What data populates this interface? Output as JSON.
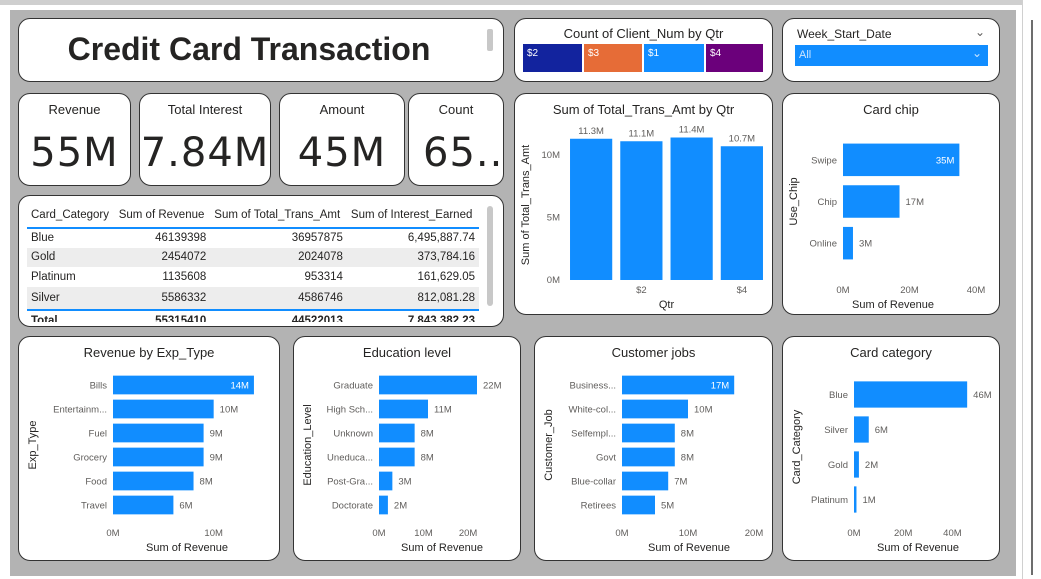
{
  "title": "Credit Card Transaction",
  "kpis": [
    {
      "label": "Revenue",
      "value": "55M"
    },
    {
      "label": "Total Interest",
      "value": "7.84M"
    },
    {
      "label": "Amount",
      "value": "45M"
    },
    {
      "label": "Count",
      "value": "65..."
    }
  ],
  "slicer": {
    "title": "Week_Start_Date",
    "selected": "All"
  },
  "qtr_count": {
    "title": "Count of Client_Num by Qtr",
    "segments": [
      {
        "label": "$2",
        "color": "#12239e"
      },
      {
        "label": "$3",
        "color": "#e66c37"
      },
      {
        "label": "$1",
        "color": "#118dff"
      },
      {
        "label": "$4",
        "color": "#6b007b"
      }
    ]
  },
  "table": {
    "columns": [
      "Card_Category",
      "Sum of Revenue",
      "Sum of Total_Trans_Amt",
      "Sum of Interest_Earned"
    ],
    "rows": [
      [
        "Blue",
        "46139398",
        "36957875",
        "6,495,887.74"
      ],
      [
        "Gold",
        "2454072",
        "2024078",
        "373,784.16"
      ],
      [
        "Platinum",
        "1135608",
        "953314",
        "161,629.05"
      ],
      [
        "Silver",
        "5586332",
        "4586746",
        "812,081.28"
      ]
    ],
    "total": [
      "Total",
      "55315410",
      "44522013",
      "7,843,382.23"
    ]
  },
  "chart_data": [
    {
      "id": "trans_by_qtr",
      "type": "bar",
      "title": "Sum of Total_Trans_Amt by Qtr",
      "xlabel": "Qtr",
      "ylabel": "Sum of Total_Trans_Amt",
      "categories": [
        "$1",
        "$2",
        "$3",
        "$4"
      ],
      "values": [
        11.3,
        11.1,
        11.4,
        10.7
      ],
      "data_labels": [
        "11.3M",
        "11.1M",
        "11.4M",
        "10.7M"
      ],
      "x_ticks": [
        "$2",
        "$4"
      ],
      "y_ticks": [
        "0M",
        "5M",
        "10M"
      ],
      "ylim": [
        0,
        12
      ]
    },
    {
      "id": "card_chip",
      "type": "bar",
      "orientation": "horizontal",
      "title": "Card chip",
      "xlabel": "Sum of Revenue",
      "ylabel": "Use_Chip",
      "categories": [
        "Swipe",
        "Chip",
        "Online"
      ],
      "values": [
        35,
        17,
        3
      ],
      "data_labels": [
        "35M",
        "17M",
        "3M"
      ],
      "x_ticks": [
        "0M",
        "20M",
        "40M"
      ],
      "xlim": [
        0,
        40
      ]
    },
    {
      "id": "exp_type",
      "type": "bar",
      "orientation": "horizontal",
      "title": "Revenue by Exp_Type",
      "xlabel": "Sum of Revenue",
      "ylabel": "Exp_Type",
      "categories": [
        "Bills",
        "Entertainm...",
        "Fuel",
        "Grocery",
        "Food",
        "Travel"
      ],
      "values": [
        14,
        10,
        9,
        9,
        8,
        6
      ],
      "data_labels": [
        "14M",
        "10M",
        "9M",
        "9M",
        "8M",
        "6M"
      ],
      "x_ticks": [
        "0M",
        "10M"
      ],
      "xlim": [
        0,
        15
      ]
    },
    {
      "id": "education",
      "type": "bar",
      "orientation": "horizontal",
      "title": "Education level",
      "xlabel": "Sum of Revenue",
      "ylabel": "Education_Level",
      "categories": [
        "Graduate",
        "High Sch...",
        "Unknown",
        "Uneduca...",
        "Post-Gra...",
        "Doctorate"
      ],
      "values": [
        22,
        11,
        8,
        8,
        3,
        2
      ],
      "data_labels": [
        "22M",
        "11M",
        "8M",
        "8M",
        "3M",
        "2M"
      ],
      "x_ticks": [
        "0M",
        "10M",
        "20M"
      ],
      "xlim": [
        0,
        22
      ]
    },
    {
      "id": "jobs",
      "type": "bar",
      "orientation": "horizontal",
      "title": "Customer jobs",
      "xlabel": "Sum of Revenue",
      "ylabel": "Customer_Job",
      "categories": [
        "Business...",
        "White-col...",
        "Selfempl...",
        "Govt",
        "Blue-collar",
        "Retirees"
      ],
      "values": [
        17,
        10,
        8,
        8,
        7,
        5
      ],
      "data_labels": [
        "17M",
        "10M",
        "8M",
        "8M",
        "7M",
        "5M"
      ],
      "x_ticks": [
        "0M",
        "10M",
        "20M"
      ],
      "xlim": [
        0,
        20
      ]
    },
    {
      "id": "card_category",
      "type": "bar",
      "orientation": "horizontal",
      "title": "Card category",
      "xlabel": "Sum of Revenue",
      "ylabel": "Card_Category",
      "categories": [
        "Blue",
        "Silver",
        "Gold",
        "Platinum"
      ],
      "values": [
        46,
        6,
        2,
        1
      ],
      "data_labels": [
        "46M",
        "6M",
        "2M",
        "1M"
      ],
      "x_ticks": [
        "0M",
        "20M",
        "40M"
      ],
      "xlim": [
        0,
        50
      ]
    }
  ],
  "colors": {
    "bar": "#118dff",
    "axis_text": "#605e5c",
    "selected_slicer": "#118dff"
  }
}
